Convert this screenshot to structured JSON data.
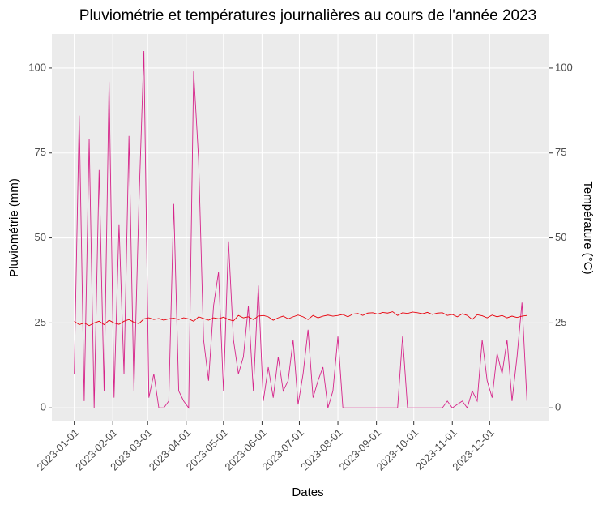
{
  "chart_data": {
    "type": "line",
    "title": "Pluviométrie et températures journalières au cours de l'année 2023",
    "x_label": "Dates",
    "y_label": "Pluviométrie (mm)",
    "y2_label": "Température (°C)",
    "x": [
      "2023-01-01",
      "2023-01-05",
      "2023-01-09",
      "2023-01-13",
      "2023-01-17",
      "2023-01-21",
      "2023-01-25",
      "2023-01-29",
      "2023-02-02",
      "2023-02-06",
      "2023-02-10",
      "2023-02-14",
      "2023-02-18",
      "2023-02-22",
      "2023-02-26",
      "2023-03-02",
      "2023-03-06",
      "2023-03-10",
      "2023-03-14",
      "2023-03-18",
      "2023-03-22",
      "2023-03-26",
      "2023-03-30",
      "2023-04-03",
      "2023-04-07",
      "2023-04-11",
      "2023-04-15",
      "2023-04-19",
      "2023-04-23",
      "2023-04-27",
      "2023-05-01",
      "2023-05-05",
      "2023-05-09",
      "2023-05-13",
      "2023-05-17",
      "2023-05-21",
      "2023-05-25",
      "2023-05-29",
      "2023-06-02",
      "2023-06-06",
      "2023-06-10",
      "2023-06-14",
      "2023-06-18",
      "2023-06-22",
      "2023-06-26",
      "2023-06-30",
      "2023-07-04",
      "2023-07-08",
      "2023-07-12",
      "2023-07-16",
      "2023-07-20",
      "2023-07-24",
      "2023-07-28",
      "2023-08-01",
      "2023-08-05",
      "2023-08-09",
      "2023-08-13",
      "2023-08-17",
      "2023-08-21",
      "2023-08-25",
      "2023-08-29",
      "2023-09-02",
      "2023-09-06",
      "2023-09-10",
      "2023-09-14",
      "2023-09-18",
      "2023-09-22",
      "2023-09-26",
      "2023-09-30",
      "2023-10-04",
      "2023-10-08",
      "2023-10-12",
      "2023-10-16",
      "2023-10-20",
      "2023-10-24",
      "2023-10-28",
      "2023-11-01",
      "2023-11-05",
      "2023-11-09",
      "2023-11-13",
      "2023-11-17",
      "2023-11-21",
      "2023-11-25",
      "2023-11-29",
      "2023-12-03",
      "2023-12-07",
      "2023-12-11",
      "2023-12-15",
      "2023-12-19",
      "2023-12-23",
      "2023-12-27",
      "2023-12-31"
    ],
    "series": [
      {
        "name": "Pluviométrie",
        "color": "#d6248a",
        "axis": "y",
        "values": [
          10,
          86,
          2,
          79,
          0,
          70,
          5,
          96,
          3,
          54,
          10,
          80,
          5,
          60,
          105,
          3,
          10,
          0,
          0,
          2,
          60,
          5,
          2,
          0,
          99,
          73,
          20,
          8,
          30,
          40,
          5,
          49,
          20,
          10,
          15,
          30,
          5,
          36,
          2,
          12,
          3,
          15,
          5,
          8,
          20,
          1,
          10,
          23,
          3,
          8,
          12,
          0,
          5,
          21,
          0,
          0,
          0,
          0,
          0,
          0,
          0,
          0,
          0,
          0,
          0,
          0,
          21,
          0,
          0,
          0,
          0,
          0,
          0,
          0,
          0,
          2,
          0,
          1,
          2,
          0,
          5,
          2,
          20,
          8,
          3,
          16,
          10,
          20,
          2,
          15,
          31,
          2
        ]
      },
      {
        "name": "Température",
        "color": "#e8000b",
        "axis": "y2",
        "values": [
          25.5,
          24.5,
          25,
          24.2,
          25,
          25.5,
          24.5,
          25.8,
          25,
          24.6,
          25.5,
          26,
          25.2,
          24.8,
          26.2,
          26.5,
          26,
          26.3,
          25.8,
          26.2,
          26.4,
          26,
          26.5,
          26.2,
          25.5,
          26.8,
          26.3,
          25.8,
          26.5,
          26.2,
          26.7,
          26,
          25.6,
          27.2,
          26.5,
          26.8,
          26,
          27,
          27.2,
          26.8,
          25.8,
          26.5,
          27,
          26.2,
          26.8,
          27.3,
          26.8,
          26,
          27.2,
          26.5,
          27,
          27.3,
          27,
          27.2,
          27.5,
          26.8,
          27.6,
          27.8,
          27.2,
          27.9,
          28,
          27.6,
          28.1,
          27.9,
          28.3,
          27.2,
          28,
          27.8,
          28.2,
          28,
          27.7,
          28.1,
          27.5,
          27.9,
          28,
          27.2,
          27.5,
          26.8,
          27.7,
          27.2,
          26,
          27.4,
          27.1,
          26.5,
          27.3,
          26.8,
          27.2,
          26.5,
          27,
          26.6,
          27,
          27.2
        ]
      }
    ],
    "xlim": [
      "2022-12-14",
      "2024-01-18"
    ],
    "xticks": [
      "2023-01-01",
      "2023-02-01",
      "2023-03-01",
      "2023-04-01",
      "2023-05-01",
      "2023-06-01",
      "2023-07-01",
      "2023-08-01",
      "2023-09-01",
      "2023-10-01",
      "2023-11-01",
      "2023-12-01"
    ],
    "ylim": [
      -4,
      110
    ],
    "yticks": [
      0,
      25,
      50,
      75,
      100
    ],
    "y2lim": [
      -4,
      110
    ],
    "y2ticks": [
      0,
      25,
      50,
      75,
      100
    ],
    "grid": true
  }
}
